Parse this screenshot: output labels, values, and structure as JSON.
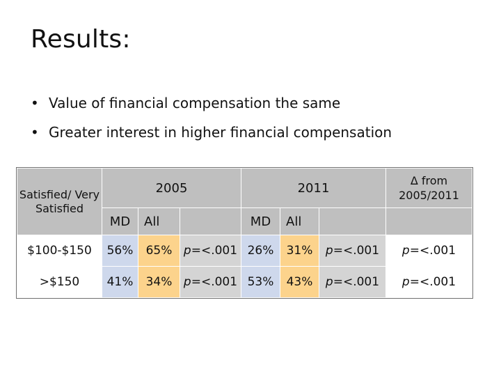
{
  "slide": {
    "title": "Results:",
    "bullets": [
      "Value of financial compensation the same",
      "Greater interest in higher financial compensation"
    ]
  },
  "table": {
    "header_label": "Satisfied/ Very Satisfied",
    "year_2005": "2005",
    "year_2011": "2011",
    "delta_label": "Δ from 2005/2011",
    "sub_md": "MD",
    "sub_all": "All",
    "p_prefix": "p",
    "p_suffix": "=<.001",
    "rows": [
      {
        "label": "$100-$150",
        "md_2005": "56%",
        "all_2005": "65%",
        "md_2011": "26%",
        "all_2011": "31%"
      },
      {
        "label": ">$150",
        "md_2005": "41%",
        "all_2005": "34%",
        "md_2011": "53%",
        "all_2011": "43%"
      }
    ],
    "colors": {
      "header": "#bfbfbf",
      "md": "#ced8ec",
      "all": "#fcd38c",
      "pvalue": "#d4d4d4"
    }
  }
}
